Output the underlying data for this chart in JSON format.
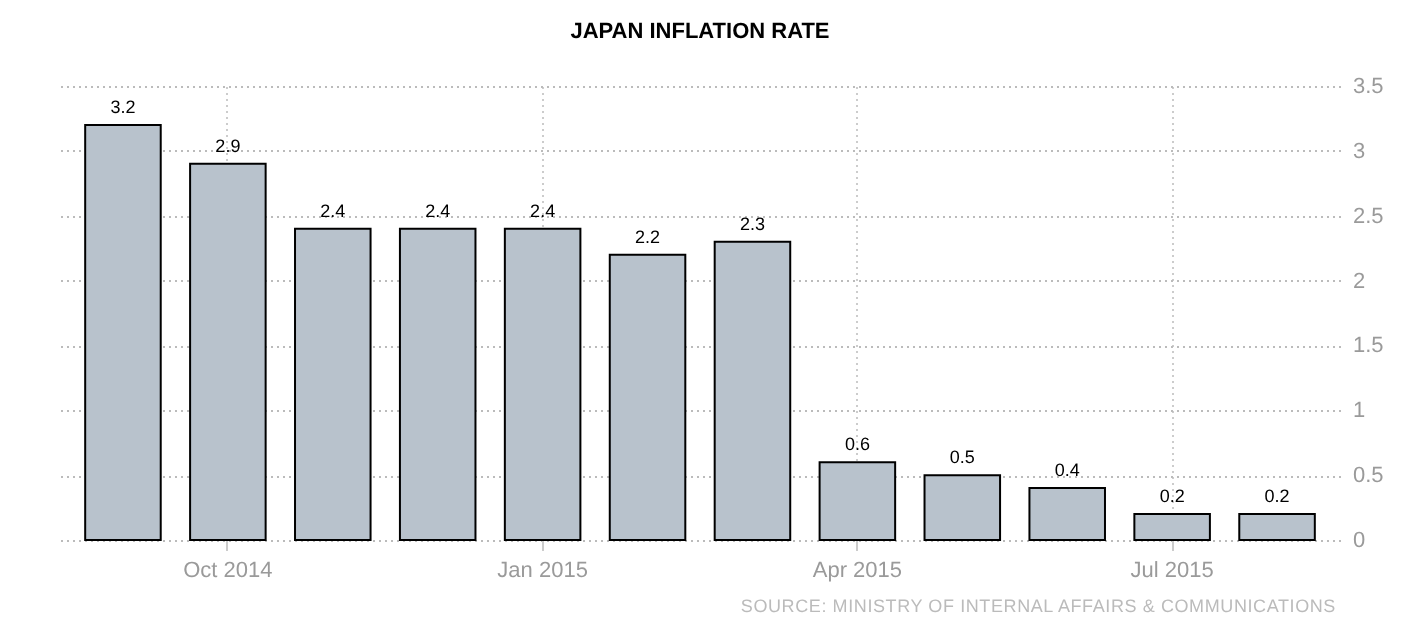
{
  "chart_data": {
    "type": "bar",
    "title": "JAPAN INFLATION RATE",
    "categories": [
      null,
      "Oct 2014",
      null,
      null,
      "Jan 2015",
      null,
      null,
      "Apr 2015",
      null,
      null,
      "Jul 2015",
      null
    ],
    "values": [
      3.2,
      2.9,
      2.4,
      2.4,
      2.4,
      2.2,
      2.3,
      0.6,
      0.5,
      0.4,
      0.2,
      0.2
    ],
    "color": "#b8c2cc",
    "ylim": [
      0,
      3.5
    ],
    "yticks": [
      0,
      0.5,
      1,
      1.5,
      2,
      2.5,
      3,
      3.5
    ],
    "grid": true,
    "data_labels": true,
    "annotations": [
      "SOURCE: MINISTRY OF INTERNAL AFFAIRS & COMMUNICATIONS"
    ]
  }
}
